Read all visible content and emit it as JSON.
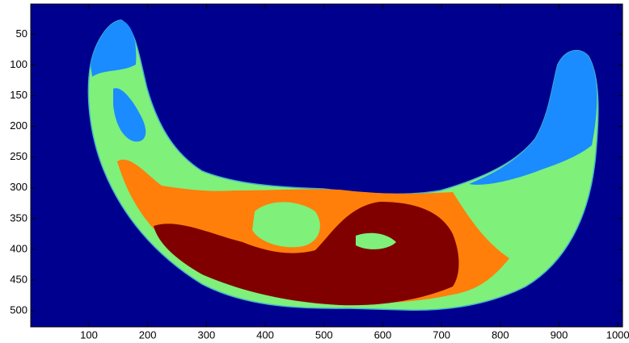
{
  "chart_data": {
    "type": "image",
    "xlim": [
      1,
      1008
    ],
    "ylim": [
      1,
      526
    ],
    "y_reversed": true,
    "xticks": [
      100,
      200,
      300,
      400,
      500,
      600,
      700,
      800,
      900,
      1000
    ],
    "yticks": [
      50,
      100,
      150,
      200,
      250,
      300,
      350,
      400,
      450,
      500
    ]
  }
}
